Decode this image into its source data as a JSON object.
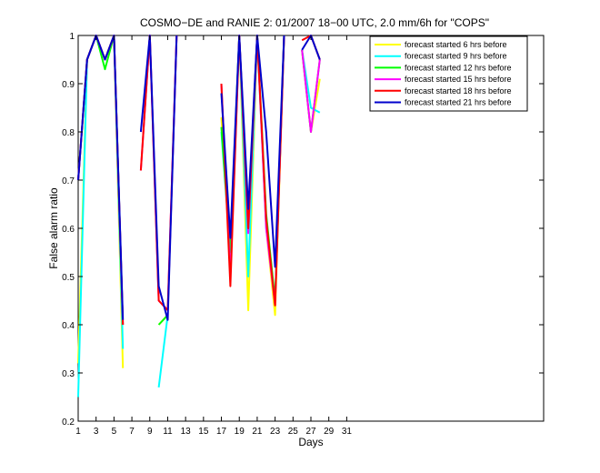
{
  "chart_data": {
    "type": "line",
    "title": "COSMO−DE and RANIE 2: 01/2007 18−00 UTC, 2.0 mm/6h for \"COPS\"",
    "xlabel": "Days",
    "ylabel": "False alarm ratio",
    "xlim": [
      1,
      53
    ],
    "ylim": [
      0.2,
      1
    ],
    "xticks": [
      1,
      3,
      5,
      7,
      9,
      11,
      13,
      15,
      17,
      19,
      21,
      23,
      25,
      27,
      29,
      31
    ],
    "yticks": [
      0.2,
      0.3,
      0.4,
      0.5,
      0.6,
      0.7,
      0.8,
      0.9,
      1
    ],
    "ytick_labels": [
      "0.2",
      "0.3",
      "0.4",
      "0.5",
      "0.6",
      "0.7",
      "0.8",
      "0.9",
      "1"
    ],
    "grid": false,
    "legend_position": "top-right",
    "series": [
      {
        "name": "forecast started 6 hrs before",
        "color": "#ffff00",
        "points": [
          [
            1,
            0.32
          ],
          [
            2,
            0.95
          ],
          [
            3,
            1.0
          ],
          [
            4,
            0.95
          ],
          [
            5,
            1.0
          ],
          [
            6,
            0.31
          ],
          [
            null,
            null
          ],
          [
            10,
            0.4
          ],
          [
            11,
            0.42
          ],
          [
            null,
            null
          ],
          [
            17,
            0.83
          ],
          [
            18,
            0.55
          ],
          [
            19,
            1.0
          ],
          [
            20,
            0.43
          ],
          [
            21,
            1.0
          ],
          [
            22,
            0.6
          ],
          [
            23,
            0.42
          ],
          [
            24,
            1.0
          ],
          [
            null,
            null
          ],
          [
            26,
            0.97
          ],
          [
            27,
            0.8
          ],
          [
            28,
            0.91
          ]
        ]
      },
      {
        "name": "forecast started 9 hrs before",
        "color": "#00ffff",
        "points": [
          [
            1,
            0.25
          ],
          [
            2,
            0.95
          ],
          [
            3,
            1.0
          ],
          [
            4,
            0.95
          ],
          [
            5,
            1.0
          ],
          [
            6,
            0.35
          ],
          [
            null,
            null
          ],
          [
            10,
            0.27
          ],
          [
            11,
            0.42
          ],
          [
            null,
            null
          ],
          [
            17,
            0.8
          ],
          [
            18,
            0.55
          ],
          [
            19,
            1.0
          ],
          [
            20,
            0.5
          ],
          [
            21,
            1.0
          ],
          [
            22,
            0.6
          ],
          [
            23,
            0.45
          ],
          [
            24,
            1.0
          ],
          [
            null,
            null
          ],
          [
            26,
            0.97
          ],
          [
            27,
            0.85
          ],
          [
            28,
            0.84
          ]
        ]
      },
      {
        "name": "forecast started 12 hrs before",
        "color": "#00ff00",
        "points": [
          [
            1,
            0.7
          ],
          [
            2,
            0.95
          ],
          [
            3,
            1.0
          ],
          [
            4,
            0.93
          ],
          [
            5,
            1.0
          ],
          [
            6,
            0.4
          ],
          [
            null,
            null
          ],
          [
            10,
            0.4
          ],
          [
            11,
            0.42
          ],
          [
            null,
            null
          ],
          [
            17,
            0.81
          ],
          [
            18,
            0.55
          ],
          [
            19,
            1.0
          ],
          [
            20,
            0.6
          ],
          [
            21,
            1.0
          ],
          [
            22,
            0.63
          ],
          [
            23,
            0.45
          ],
          [
            24,
            1.0
          ],
          [
            null,
            null
          ],
          [
            26,
            0.97
          ],
          [
            27,
            0.8
          ],
          [
            28,
            0.95
          ]
        ]
      },
      {
        "name": "forecast started 15 hrs before",
        "color": "#ff00ff",
        "points": [
          [
            1,
            0.7
          ],
          [
            2,
            0.95
          ],
          [
            3,
            1.0
          ],
          [
            4,
            0.95
          ],
          [
            5,
            1.0
          ],
          [
            6,
            0.4
          ],
          [
            null,
            null
          ],
          [
            8,
            0.72
          ],
          [
            9,
            1.0
          ],
          [
            10,
            0.45
          ],
          [
            11,
            0.43
          ],
          [
            12,
            1.0
          ],
          [
            null,
            null
          ],
          [
            17,
            0.9
          ],
          [
            18,
            0.5
          ],
          [
            19,
            1.0
          ],
          [
            20,
            0.59
          ],
          [
            21,
            1.0
          ],
          [
            22,
            0.6
          ],
          [
            23,
            0.44
          ],
          [
            24,
            1.0
          ],
          [
            null,
            null
          ],
          [
            26,
            0.97
          ],
          [
            27,
            0.8
          ],
          [
            28,
            0.95
          ]
        ]
      },
      {
        "name": "forecast started 18 hrs before",
        "color": "#ff0000",
        "points": [
          [
            1,
            0.7
          ],
          [
            2,
            0.95
          ],
          [
            3,
            1.0
          ],
          [
            4,
            0.95
          ],
          [
            5,
            1.0
          ],
          [
            6,
            0.4
          ],
          [
            null,
            null
          ],
          [
            8,
            0.72
          ],
          [
            9,
            1.0
          ],
          [
            10,
            0.45
          ],
          [
            11,
            0.43
          ],
          [
            12,
            1.0
          ],
          [
            null,
            null
          ],
          [
            17,
            0.9
          ],
          [
            18,
            0.48
          ],
          [
            19,
            1.0
          ],
          [
            20,
            0.6
          ],
          [
            21,
            1.0
          ],
          [
            22,
            0.62
          ],
          [
            23,
            0.44
          ],
          [
            24,
            1.0
          ],
          [
            null,
            null
          ],
          [
            26,
            0.99
          ],
          [
            27,
            1.0
          ],
          [
            28,
            0.95
          ]
        ]
      },
      {
        "name": "forecast started 21 hrs before",
        "color": "#0000cc",
        "points": [
          [
            1,
            0.7
          ],
          [
            2,
            0.95
          ],
          [
            3,
            1.0
          ],
          [
            4,
            0.95
          ],
          [
            5,
            1.0
          ],
          [
            6,
            0.41
          ],
          [
            null,
            null
          ],
          [
            8,
            0.8
          ],
          [
            9,
            1.0
          ],
          [
            10,
            0.48
          ],
          [
            11,
            0.41
          ],
          [
            12,
            1.0
          ],
          [
            null,
            null
          ],
          [
            17,
            0.88
          ],
          [
            18,
            0.58
          ],
          [
            19,
            1.0
          ],
          [
            20,
            0.64
          ],
          [
            21,
            1.0
          ],
          [
            22,
            0.8
          ],
          [
            23,
            0.52
          ],
          [
            24,
            1.0
          ],
          [
            null,
            null
          ],
          [
            26,
            0.97
          ],
          [
            27,
            1.0
          ],
          [
            28,
            0.95
          ]
        ]
      }
    ]
  }
}
